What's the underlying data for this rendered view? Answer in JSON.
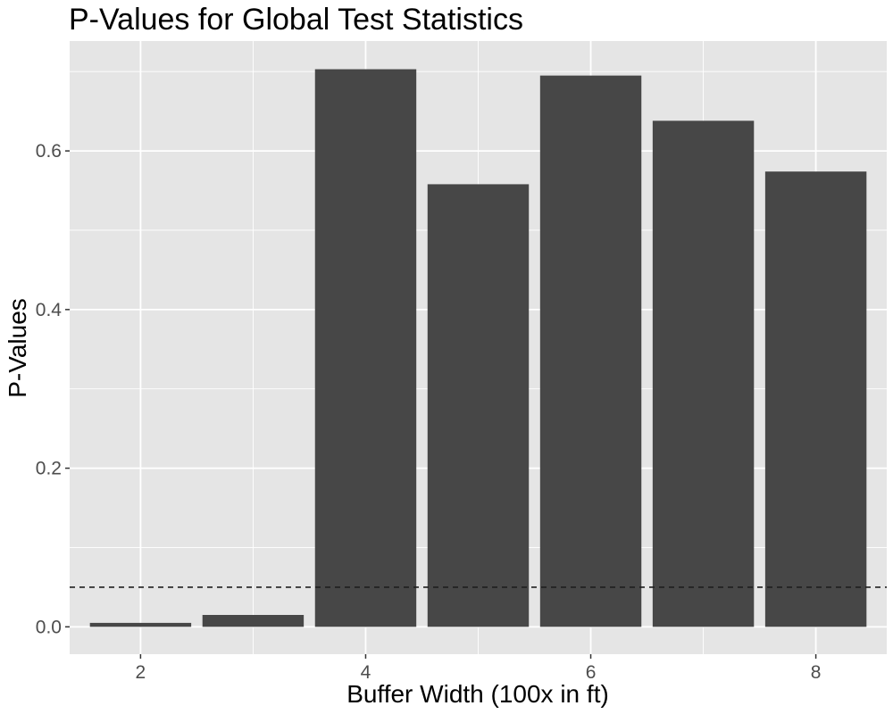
{
  "chart_data": {
    "type": "bar",
    "title": "P-Values for Global Test Statistics",
    "xlabel": "Buffer Width (100x in ft)",
    "ylabel": "P-Values",
    "x": [
      2,
      3,
      4,
      5,
      6,
      7,
      8
    ],
    "values": [
      0.005,
      0.015,
      0.703,
      0.558,
      0.695,
      0.638,
      0.574
    ],
    "xlim": [
      1.37,
      8.63
    ],
    "ylim": [
      -0.0345,
      0.7385
    ],
    "xticks": [
      2,
      4,
      6,
      8
    ],
    "yticks": [
      0.0,
      0.2,
      0.4,
      0.6
    ],
    "ytick_labels": [
      "0.0",
      "0.2",
      "0.4",
      "0.6"
    ],
    "reference_line": {
      "y": 0.05,
      "style": "dashed"
    },
    "grid": true,
    "colors": {
      "bar": "#474747",
      "panel": "#e5e5e5",
      "grid": "#ffffff",
      "reference_line": "#1f1f1f",
      "tick_text": "#4d4d4d"
    }
  }
}
